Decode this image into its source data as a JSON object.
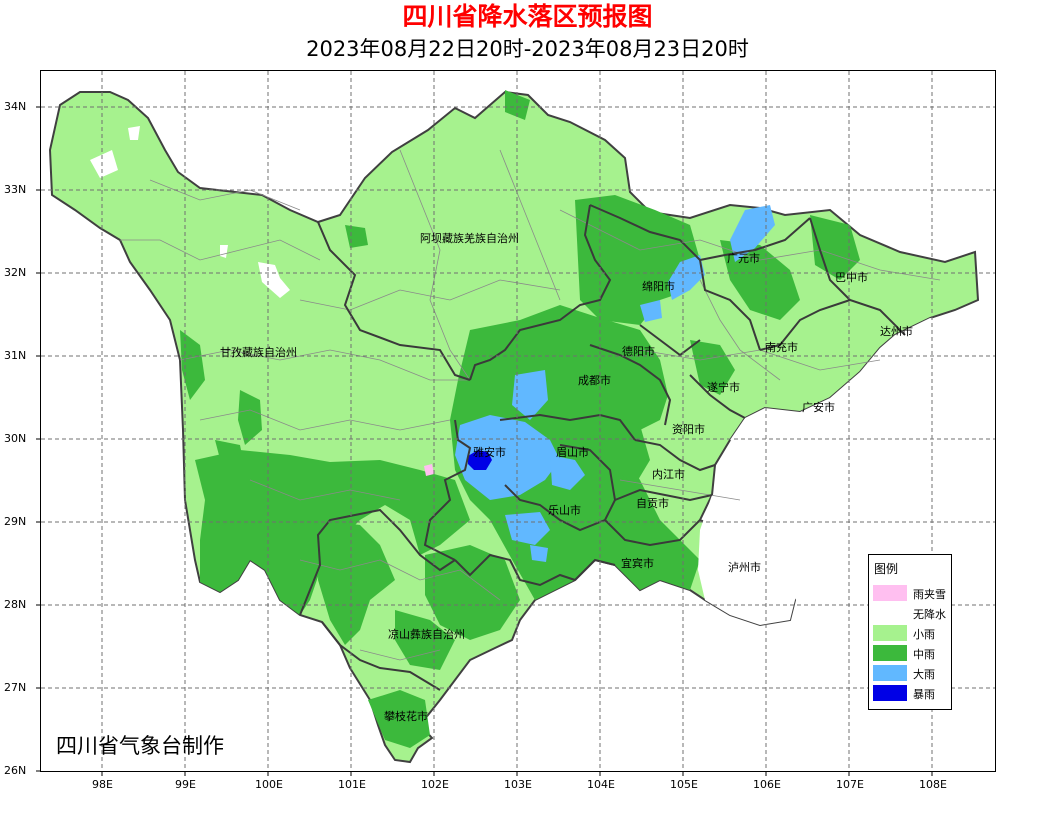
{
  "title": "四川省降水落区预报图",
  "subtitle": "2023年08月22日20时-2023年08月23日20时",
  "credit": "四川省气象台制作",
  "latitude_labels": [
    "34N",
    "33N",
    "32N",
    "31N",
    "30N",
    "29N",
    "28N",
    "27N",
    "26N"
  ],
  "longitude_labels": [
    "98E",
    "99E",
    "100E",
    "101E",
    "102E",
    "103E",
    "104E",
    "105E",
    "106E",
    "107E",
    "108E"
  ],
  "legend": {
    "title": "图例",
    "items": [
      {
        "label": "雨夹雪",
        "color": "#ffbff0"
      },
      {
        "label": "无降水",
        "color": "#ffffff"
      },
      {
        "label": "小雨",
        "color": "#a6f28e"
      },
      {
        "label": "中雨",
        "color": "#3cb93c"
      },
      {
        "label": "大雨",
        "color": "#61b8ff"
      },
      {
        "label": "暴雨",
        "color": "#0000e6"
      }
    ]
  },
  "places": {
    "aba": "阿坝藏族羌族自治州",
    "ganzi": "甘孜藏族自治州",
    "liangshan": "凉山彝族自治州",
    "panzhihua": "攀枝花市",
    "guangyuan": "广元市",
    "bazhong": "巴中市",
    "mianyang": "绵阳市",
    "dazhou": "达州市",
    "deyang": "德阳市",
    "nanchong": "南充市",
    "chengdu": "成都市",
    "suining": "遂宁市",
    "guangan": "广安市",
    "ziyang": "资阳市",
    "yaan": "雅安市",
    "meishan": "眉山市",
    "neijiang": "内江市",
    "zigong": "自贡市",
    "leshan": "乐山市",
    "yibin": "宜宾市",
    "luzhou": "泸州市"
  }
}
